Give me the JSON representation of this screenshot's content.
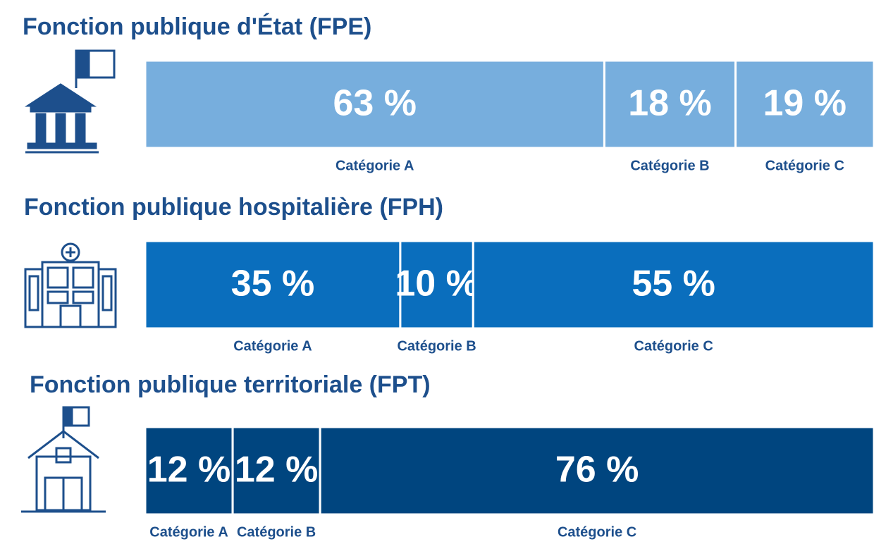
{
  "chart_data": [
    {
      "type": "stacked_bar",
      "title": "Fonction publique d'État (FPE)",
      "categories": [
        "Catégorie A",
        "Catégorie B",
        "Catégorie C"
      ],
      "values": [
        63,
        18,
        19
      ],
      "value_labels": [
        "63 %",
        "18 %",
        "19 %"
      ],
      "color": "#77aedd"
    },
    {
      "type": "stacked_bar",
      "title": "Fonction publique hospitalière (FPH)",
      "categories": [
        "Catégorie A",
        "Catégorie B",
        "Catégorie C"
      ],
      "values": [
        35,
        10,
        55
      ],
      "value_labels": [
        "35 %",
        "10 %",
        "55 %"
      ],
      "color": "#0a6ebd"
    },
    {
      "type": "stacked_bar",
      "title": "Fonction publique territoriale (FPT)",
      "categories": [
        "Catégorie A",
        "Catégorie B",
        "Catégorie C"
      ],
      "values": [
        12,
        12,
        76
      ],
      "value_labels": [
        "12 %",
        "12 %",
        "76 %"
      ],
      "color": "#00457f"
    }
  ]
}
